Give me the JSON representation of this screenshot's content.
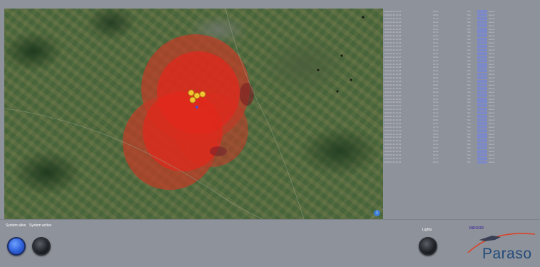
{
  "map": {
    "info_icon": "info-icon"
  },
  "table": {
    "rows": [
      {
        "c1": "2019.03.12 10:24",
        "c2": "136 k",
        "c3": "Sim",
        "c5": "detect"
      },
      {
        "c1": "2019.03.12 10:24",
        "c2": "138 k",
        "c3": "Sim",
        "c5": "detect"
      },
      {
        "c1": "2019.03.12 10:24",
        "c2": "141 k",
        "c3": "Sim",
        "c5": "detect"
      },
      {
        "c1": "2019.03.12 10:25",
        "c2": "136 k",
        "c3": "Sim",
        "c5": "detect"
      },
      {
        "c1": "2019.03.12 10:25",
        "c2": "139 k",
        "c3": "Sim",
        "c5": "detect"
      },
      {
        "c1": "2019.03.12 10:25",
        "c2": "142 k",
        "c3": "Sim",
        "c5": "detect"
      },
      {
        "c1": "2019.03.12 10:25",
        "c2": "137 k",
        "c3": "Sim",
        "c5": "detect"
      },
      {
        "c1": "2019.03.12 10:26",
        "c2": "140 k",
        "c3": "Sim",
        "c5": "detect"
      },
      {
        "c1": "2019.03.12 10:26",
        "c2": "136 k",
        "c3": "Sim",
        "c5": "detect"
      },
      {
        "c1": "2019.03.12 10:26",
        "c2": "143 k",
        "c3": "Sim",
        "c5": "detect"
      },
      {
        "c1": "2019.03.12 10:26",
        "c2": "138 k",
        "c3": "Sim",
        "c5": "detect"
      },
      {
        "c1": "2019.03.12 10:27",
        "c2": "141 k",
        "c3": "Sim",
        "c5": "detect"
      },
      {
        "c1": "2019.03.12 10:27",
        "c2": "136 k",
        "c3": "Sim",
        "c5": "detect"
      },
      {
        "c1": "2019.03.12 10:27",
        "c2": "139 k",
        "c3": "Sim",
        "c5": "detect"
      },
      {
        "c1": "2019.03.12 10:27",
        "c2": "142 k",
        "c3": "Sim",
        "c5": "detect"
      },
      {
        "c1": "2019.03.12 10:28",
        "c2": "137 k",
        "c3": "Sim",
        "c5": "detect"
      },
      {
        "c1": "2019.03.12 10:28",
        "c2": "140 k",
        "c3": "Sim",
        "c5": "detect"
      },
      {
        "c1": "2019.03.12 10:28",
        "c2": "136 k",
        "c3": "Sim",
        "c5": "detect"
      },
      {
        "c1": "2019.03.12 10:28",
        "c2": "143 k",
        "c3": "Sim",
        "c5": "detect"
      },
      {
        "c1": "2019.03.12 10:29",
        "c2": "138 k",
        "c3": "Sim",
        "c5": "detect"
      },
      {
        "c1": "2019.03.12 10:29",
        "c2": "141 k",
        "c3": "Sim",
        "c5": "detect"
      },
      {
        "c1": "2019.03.12 10:29",
        "c2": "136 k",
        "c3": "Sim",
        "c5": "detect"
      },
      {
        "c1": "2019.03.12 10:29",
        "c2": "139 k",
        "c3": "Sim",
        "c5": "detect"
      },
      {
        "c1": "2019.03.12 10:30",
        "c2": "142 k",
        "c3": "Sim",
        "c5": "detect"
      },
      {
        "c1": "2019.03.12 10:30",
        "c2": "137 k",
        "c3": "Sim",
        "c5": "detect"
      },
      {
        "c1": "2019.03.12 10:30",
        "c2": "140 k",
        "c3": "Sim",
        "c5": "detect"
      },
      {
        "c1": "2019.03.12 10:30",
        "c2": "136 k",
        "c3": "Sim",
        "c5": "detect"
      },
      {
        "c1": "2019.03.12 10:31",
        "c2": "143 k",
        "c3": "Sim",
        "c5": "detect"
      },
      {
        "c1": "2019.03.12 10:31",
        "c2": "138 k",
        "c3": "Sim",
        "c5": "detect"
      },
      {
        "c1": "2019.03.12 10:31",
        "c2": "141 k",
        "c3": "Sim",
        "c5": "detect"
      },
      {
        "c1": "2019.03.12 10:31",
        "c2": "136 k",
        "c3": "Sim",
        "c5": "detect"
      },
      {
        "c1": "2019.03.12 10:32",
        "c2": "139 k",
        "c3": "Sim",
        "c5": "detect"
      },
      {
        "c1": "2019.03.12 10:32",
        "c2": "142 k",
        "c3": "Sim",
        "c5": "detect"
      },
      {
        "c1": "2019.03.12 10:32",
        "c2": "137 k",
        "c3": "Sim",
        "c5": "detect"
      },
      {
        "c1": "2019.03.12 10:32",
        "c2": "140 k",
        "c3": "Sim",
        "c5": "detect"
      },
      {
        "c1": "2019.03.12 10:33",
        "c2": "136 k",
        "c3": "Sim",
        "c5": "detect"
      },
      {
        "c1": "2019.03.12 10:33",
        "c2": "143 k",
        "c3": "Sim",
        "c5": "detect"
      },
      {
        "c1": "2019.03.12 10:33",
        "c2": "138 k",
        "c3": "Sim",
        "c5": "detect"
      },
      {
        "c1": "2019.03.12 10:33",
        "c2": "141 k",
        "c3": "Sim",
        "c5": "detect"
      },
      {
        "c1": "2019.03.12 10:34",
        "c2": "136 k",
        "c3": "Sim",
        "c5": "detect"
      },
      {
        "c1": "2019.03.12 10:34",
        "c2": "139 k",
        "c3": "Sim",
        "c5": "detect"
      },
      {
        "c1": "2019.03.12 10:34",
        "c2": "142 k",
        "c3": "Sim",
        "c5": "detect"
      },
      {
        "c1": "2019.03.12 10:34",
        "c2": "137 k",
        "c3": "Sim",
        "c5": "detect"
      },
      {
        "c1": "2019.03.12 10:35",
        "c2": "140 k",
        "c3": "Sim",
        "c5": "detect"
      }
    ]
  },
  "controls": {
    "system_alive_label": "System alive",
    "system_active_label": "System active",
    "lights_label": "Lights"
  },
  "logo": {
    "small_text": "INDOOR",
    "brand": "Paraso"
  },
  "colors": {
    "accent_blue": "#2d5fd8",
    "coverage_red": "#e0281c",
    "marker_yellow": "#f2c531",
    "table_highlight": "#7c89c8"
  }
}
